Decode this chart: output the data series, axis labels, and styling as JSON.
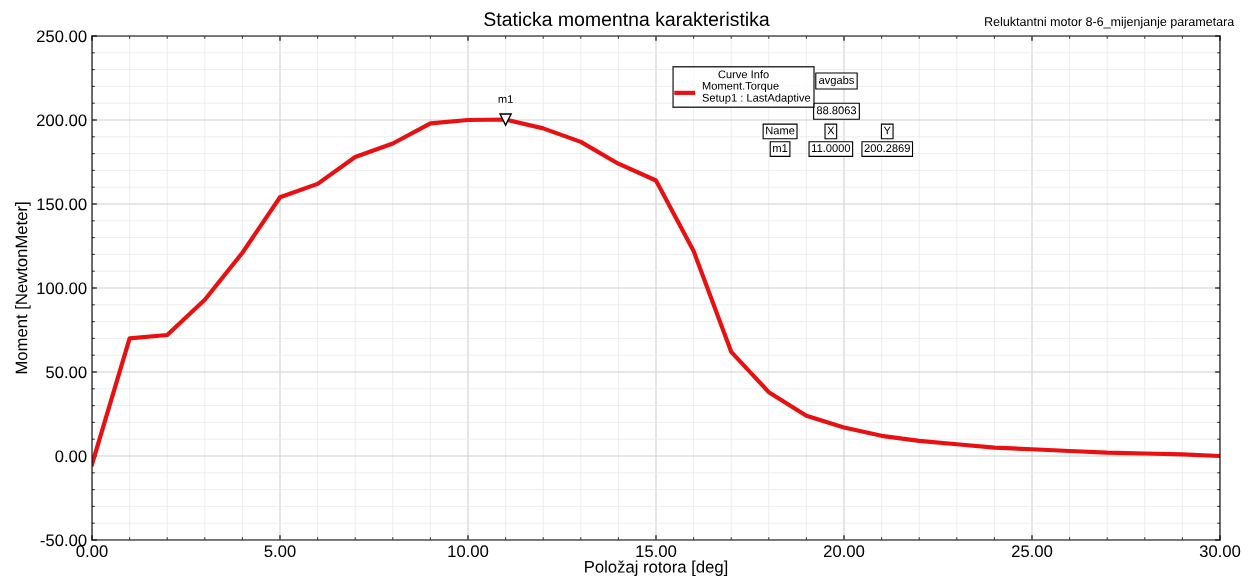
{
  "chart_data": {
    "type": "line",
    "title": "Staticka momentna karakteristika",
    "subtitle": "Reluktantni motor 8-6_mijenjanje parametara",
    "xlabel": "Položaj rotora [deg]",
    "ylabel": "Moment [NewtonMeter]",
    "x": [
      0,
      1,
      2,
      3,
      4,
      5,
      6,
      7,
      8,
      9,
      10,
      11,
      12,
      13,
      14,
      15,
      16,
      17,
      18,
      19,
      20,
      21,
      22,
      23,
      24,
      25,
      26,
      27,
      28,
      29,
      30
    ],
    "series": [
      {
        "name": "Moment.Torque\nSetup1 : LastAdaptive",
        "color": "#e81010",
        "values": [
          -5,
          70,
          72,
          93,
          121,
          154,
          162,
          178,
          186,
          198,
          200,
          200.3,
          195,
          187,
          174,
          164,
          122,
          62,
          38,
          24,
          17,
          12,
          9,
          7,
          5,
          4,
          3,
          2,
          1.5,
          1,
          0
        ]
      }
    ],
    "xlim": [
      0,
      30
    ],
    "ylim": [
      -50,
      250
    ],
    "xticks": [
      {
        "value": 0,
        "label": "0.00"
      },
      {
        "value": 5,
        "label": "5.00"
      },
      {
        "value": 10,
        "label": "10.00"
      },
      {
        "value": 15,
        "label": "15.00"
      },
      {
        "value": 20,
        "label": "20.00"
      },
      {
        "value": 25,
        "label": "25.00"
      },
      {
        "value": 30,
        "label": "30.00"
      }
    ],
    "yticks": [
      {
        "value": -50,
        "label": "-50.00"
      },
      {
        "value": 0,
        "label": "0.00"
      },
      {
        "value": 50,
        "label": "50.00"
      },
      {
        "value": 100,
        "label": "100.00"
      },
      {
        "value": 150,
        "label": "150.00"
      },
      {
        "value": 200,
        "label": "200.00"
      },
      {
        "value": 250,
        "label": "250.00"
      }
    ],
    "grid": true,
    "legend": "top right",
    "legend_title": "Curve Info",
    "line_style": "solid",
    "marker": "none",
    "annotations": [
      {
        "text": "m1",
        "x": 11,
        "y": 200.2869
      },
      "avgabs",
      "88.8063",
      "Name",
      "X",
      "Y",
      "m1",
      "11.0000",
      "200.2869"
    ]
  }
}
